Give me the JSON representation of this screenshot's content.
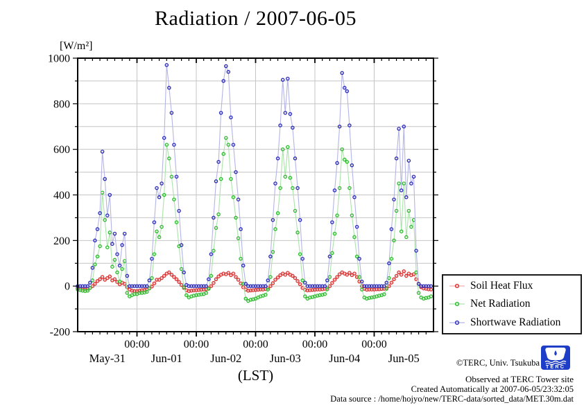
{
  "title": "Radiation / 2007-06-05",
  "y_axis": {
    "unit_label": "[W/m²]",
    "tick_labels": [
      "1000",
      "800",
      "600",
      "400",
      "200",
      "0",
      "-200"
    ]
  },
  "x_axis": {
    "time_tick_labels": [
      "00:00",
      "00:00",
      "00:00",
      "00:00",
      "00:00"
    ],
    "day_labels": [
      "May-31",
      "Jun-01",
      "Jun-02",
      "Jun-03",
      "Jun-04",
      "Jun-05"
    ],
    "axis_label": "(LST)"
  },
  "legend": {
    "items": [
      {
        "label": "Soil Heat Flux",
        "marker_color": "#d93030",
        "line_color": "#f2aeae"
      },
      {
        "label": "Net Radiation",
        "marker_color": "#2dbb2d",
        "line_color": "#aae3aa"
      },
      {
        "label": "Shortwave Radiation",
        "marker_color": "#2a2ab8",
        "line_color": "#b4b4e6"
      }
    ]
  },
  "footer": {
    "copyright": "©TERC, Univ. Tsukuba",
    "observed": "Observed at TERC Tower site",
    "created": "Created Automatically at 2007-06-05/23:32:05",
    "data_source": "Data source : /home/hojyo/new/TERC-data/sorted_data/MET.30m.dat",
    "logo_text": "TERC"
  },
  "chart_data": {
    "type": "line",
    "title": "Radiation / 2007-06-05",
    "xlabel": "(LST)",
    "ylabel": "[W/m²]",
    "x_unit": "hours since 2007-05-31 00:00 LST",
    "x_range_hours": [
      0,
      144
    ],
    "sample_interval_hours": 1,
    "ylim": [
      -200,
      1000
    ],
    "y_grid_step": 100,
    "y_label_step": 200,
    "x_major_step_hours": 24,
    "x_minor_step_hours": 3,
    "grid": true,
    "legend_position": "right-outside",
    "series": [
      {
        "name": "Soil Heat Flux",
        "marker_color": "#d93030",
        "line_color": "#f2aeae",
        "values": [
          -10,
          -12,
          -14,
          -15,
          -13,
          -8,
          0,
          10,
          22,
          30,
          40,
          28,
          35,
          42,
          25,
          30,
          18,
          8,
          15,
          10,
          -5,
          -15,
          -20,
          -22,
          -22,
          -20,
          -18,
          -17,
          -15,
          -10,
          -2,
          12,
          28,
          28,
          35,
          45,
          55,
          60,
          50,
          40,
          30,
          18,
          5,
          -8,
          -18,
          -22,
          -20,
          -19,
          -18,
          -17,
          -16,
          -15,
          -14,
          -9,
          0,
          14,
          30,
          42,
          50,
          55,
          52,
          58,
          48,
          55,
          40,
          28,
          12,
          -5,
          -15,
          -20,
          -19,
          -18,
          -17,
          -16,
          -15,
          -15,
          -13,
          -8,
          0,
          13,
          28,
          38,
          48,
          55,
          50,
          58,
          50,
          45,
          35,
          22,
          8,
          -8,
          -16,
          -19,
          -18,
          -17,
          -16,
          -15,
          -15,
          -14,
          -12,
          -8,
          0,
          14,
          28,
          40,
          52,
          60,
          55,
          50,
          58,
          48,
          55,
          40,
          20,
          0,
          -12,
          -16,
          -15,
          -15,
          -15,
          -14,
          -14,
          -13,
          -12,
          -8,
          0,
          15,
          30,
          45,
          60,
          50,
          65,
          45,
          55,
          48,
          52,
          30,
          10,
          -5,
          -10,
          -12,
          -14,
          -15
        ]
      },
      {
        "name": "Net Radiation",
        "marker_color": "#2dbb2d",
        "line_color": "#aae3aa",
        "values": [
          -15,
          -18,
          -20,
          -22,
          -20,
          -8,
          25,
          95,
          130,
          175,
          410,
          290,
          170,
          235,
          85,
          115,
          60,
          20,
          75,
          110,
          -30,
          -45,
          -40,
          -35,
          -35,
          -30,
          -30,
          -28,
          -25,
          -10,
          35,
          140,
          240,
          215,
          260,
          400,
          620,
          560,
          480,
          380,
          280,
          175,
          75,
          -5,
          -40,
          -50,
          -45,
          -42,
          -40,
          -38,
          -36,
          -35,
          -30,
          -12,
          45,
          155,
          255,
          315,
          470,
          580,
          650,
          620,
          470,
          390,
          300,
          210,
          120,
          10,
          -55,
          -65,
          -60,
          -58,
          -55,
          -50,
          -45,
          -42,
          -38,
          -15,
          40,
          150,
          250,
          320,
          430,
          600,
          480,
          610,
          475,
          430,
          330,
          235,
          140,
          25,
          -45,
          -55,
          -50,
          -48,
          -45,
          -42,
          -40,
          -38,
          -35,
          -14,
          40,
          145,
          230,
          310,
          430,
          600,
          555,
          545,
          430,
          310,
          215,
          130,
          40,
          -15,
          -50,
          -55,
          -52,
          -50,
          -48,
          -45,
          -42,
          -40,
          -36,
          -12,
          35,
          120,
          200,
          330,
          450,
          240,
          450,
          215,
          330,
          260,
          290,
          60,
          -30,
          -50,
          -55,
          -52,
          -50,
          -45
        ]
      },
      {
        "name": "Shortwave Radiation",
        "marker_color": "#2a2ab8",
        "line_color": "#b4b4e6",
        "values": [
          0,
          0,
          0,
          0,
          0,
          15,
          80,
          200,
          250,
          320,
          590,
          470,
          310,
          400,
          185,
          230,
          140,
          90,
          180,
          230,
          45,
          0,
          0,
          0,
          0,
          0,
          0,
          0,
          0,
          25,
          120,
          280,
          430,
          390,
          450,
          650,
          970,
          870,
          760,
          620,
          480,
          330,
          180,
          60,
          5,
          0,
          0,
          0,
          0,
          0,
          0,
          0,
          0,
          30,
          140,
          300,
          460,
          545,
          760,
          900,
          965,
          940,
          740,
          620,
          500,
          380,
          250,
          90,
          10,
          0,
          0,
          0,
          0,
          0,
          0,
          0,
          0,
          25,
          130,
          290,
          450,
          560,
          705,
          905,
          760,
          910,
          755,
          695,
          560,
          430,
          290,
          120,
          15,
          0,
          0,
          0,
          0,
          0,
          0,
          0,
          0,
          25,
          130,
          280,
          420,
          540,
          700,
          935,
          870,
          855,
          705,
          530,
          390,
          260,
          120,
          20,
          0,
          0,
          0,
          0,
          0,
          0,
          0,
          0,
          0,
          15,
          100,
          250,
          380,
          560,
          690,
          420,
          700,
          390,
          550,
          450,
          480,
          155,
          10,
          0,
          0,
          0,
          0,
          0
        ]
      }
    ]
  }
}
